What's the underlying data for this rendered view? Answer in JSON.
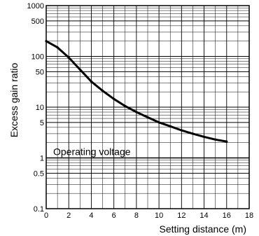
{
  "chart_data": {
    "type": "line",
    "title": "",
    "xlabel": "Setting distance (m)",
    "ylabel": "Excess gain ratio",
    "xlim": [
      0,
      18
    ],
    "ylim": [
      0.1,
      1000
    ],
    "yscale": "log",
    "grid": true,
    "x_ticks": [
      0,
      2,
      4,
      6,
      8,
      10,
      12,
      14,
      16,
      18
    ],
    "y_ticks": [
      0.1,
      0.5,
      1,
      5,
      10,
      50,
      100,
      500,
      1000
    ],
    "y_tick_labels": [
      "0.1",
      "0.5",
      "1",
      "5",
      "10",
      "50",
      "100",
      "500",
      "1000"
    ],
    "series": [
      {
        "values": [
          {
            "x": 0,
            "y": 200
          },
          {
            "x": 1,
            "y": 150
          },
          {
            "x": 2,
            "y": 95
          },
          {
            "x": 3,
            "y": 55
          },
          {
            "x": 4,
            "y": 32
          },
          {
            "x": 5,
            "y": 21
          },
          {
            "x": 6,
            "y": 14.5
          },
          {
            "x": 7,
            "y": 10.5
          },
          {
            "x": 8,
            "y": 8
          },
          {
            "x": 9,
            "y": 6.3
          },
          {
            "x": 10,
            "y": 5
          },
          {
            "x": 11,
            "y": 4.2
          },
          {
            "x": 12,
            "y": 3.5
          },
          {
            "x": 13,
            "y": 3
          },
          {
            "x": 14,
            "y": 2.6
          },
          {
            "x": 15,
            "y": 2.3
          },
          {
            "x": 16,
            "y": 2.1
          }
        ]
      }
    ],
    "reference_line": {
      "y": 1,
      "label": "Operating voltage"
    }
  }
}
